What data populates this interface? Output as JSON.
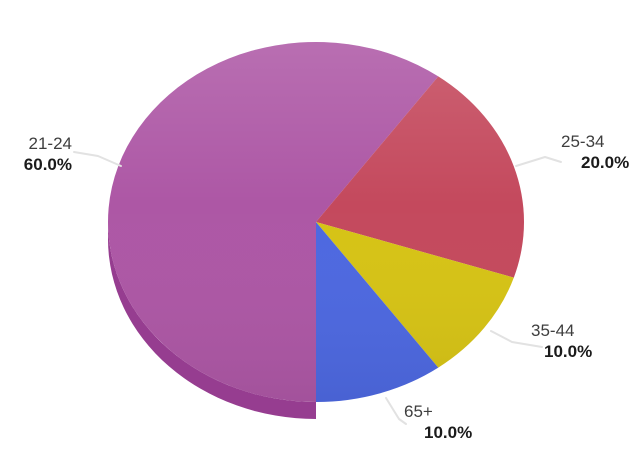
{
  "chart_data": {
    "type": "pie",
    "style": "3d",
    "title": "",
    "legend_position": "none",
    "label_style": "outside callouts with leader lines; category on first line, bold percent on second line",
    "background_color": "#ffffff",
    "leader_line_color": "#e2e2e2",
    "category_text_color": "#3e3e3e",
    "percent_text_color": "#1b1b1b",
    "start_angle_deg": 180,
    "direction": "clockwise",
    "categories": [
      "21-24",
      "25-34",
      "35-44",
      "65+"
    ],
    "values": [
      60.0,
      20.0,
      10.0,
      10.0
    ],
    "slices": [
      {
        "label": "21-24",
        "value": 60.0,
        "percent_label": "60.0%",
        "color": "#ad57a5",
        "side_color": "#963d90"
      },
      {
        "label": "25-34",
        "value": 20.0,
        "percent_label": "20.0%",
        "color": "#c4495d",
        "side_color": "#a63b4d"
      },
      {
        "label": "35-44",
        "value": 10.0,
        "percent_label": "10.0%",
        "color": "#d6c315",
        "side_color": "#ab9a08"
      },
      {
        "label": "65+",
        "value": 10.0,
        "percent_label": "10.0%",
        "color": "#4d68e0",
        "side_color": "#4156c6"
      }
    ]
  }
}
